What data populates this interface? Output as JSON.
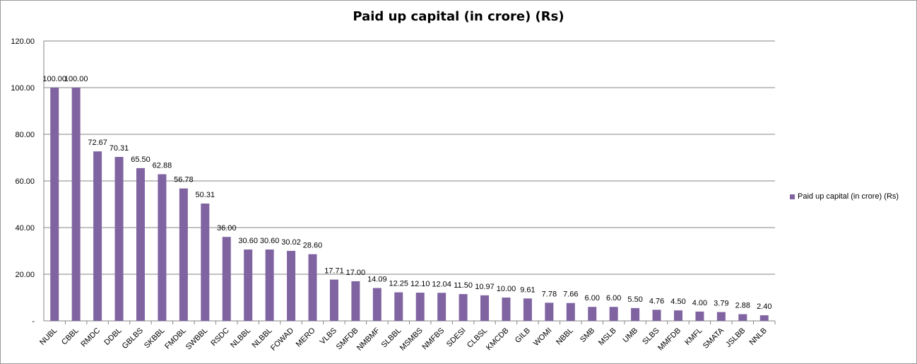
{
  "chart_data": {
    "type": "bar",
    "title": "Paid up capital (in crore) (Rs)",
    "xlabel": "",
    "ylabel": "",
    "ylim": [
      0,
      120
    ],
    "yticks": [
      "-",
      "20.00",
      "40.00",
      "60.00",
      "80.00",
      "100.00",
      "120.00"
    ],
    "grid": true,
    "legend_position": "right",
    "bar_color": "#8064a2",
    "categories": [
      "NUBL",
      "CBBL",
      "RMDC",
      "DDBL",
      "GBLBS",
      "SKBBL",
      "FMDBL",
      "SWBBL",
      "RSDC",
      "NLBBL",
      "NLBBL",
      "FOWAD",
      "MERO",
      "VLBS",
      "SMFDB",
      "NMBMF",
      "SLBBL",
      "MSMBS",
      "NMFBS",
      "SDESI",
      "CLBSL",
      "KMCDB",
      "GILB",
      "WOMI",
      "NBBL",
      "SMB",
      "MSLB",
      "UMB",
      "SLBS",
      "MMFDB",
      "KMFL",
      "SMATA",
      "JSLBB",
      "NNLB"
    ],
    "series": [
      {
        "name": "Paid up capital (in crore) (Rs)",
        "values": [
          100.0,
          100.0,
          72.67,
          70.31,
          65.5,
          62.88,
          56.78,
          50.31,
          36.0,
          30.6,
          30.6,
          30.02,
          28.6,
          17.71,
          17.0,
          14.09,
          12.25,
          12.1,
          12.04,
          11.5,
          10.97,
          10.0,
          9.61,
          7.78,
          7.66,
          6.0,
          6.0,
          5.5,
          4.76,
          4.5,
          4.0,
          3.79,
          2.88,
          2.4
        ],
        "labels": [
          "100.00",
          "100.00",
          "72.67",
          "70.31",
          "65.50",
          "62.88",
          "56.78",
          "50.31",
          "36.00",
          "30.60",
          "30.60",
          "30.02",
          "28.60",
          "17.71",
          "17.00",
          "14.09",
          "12.25",
          "12.10",
          "12.04",
          "11.50",
          "10.97",
          "10.00",
          "9.61",
          "7.78",
          "7.66",
          "6.00",
          "6.00",
          "5.50",
          "4.76",
          "4.50",
          "4.00",
          "3.79",
          "2.88",
          "2.40"
        ]
      }
    ]
  }
}
